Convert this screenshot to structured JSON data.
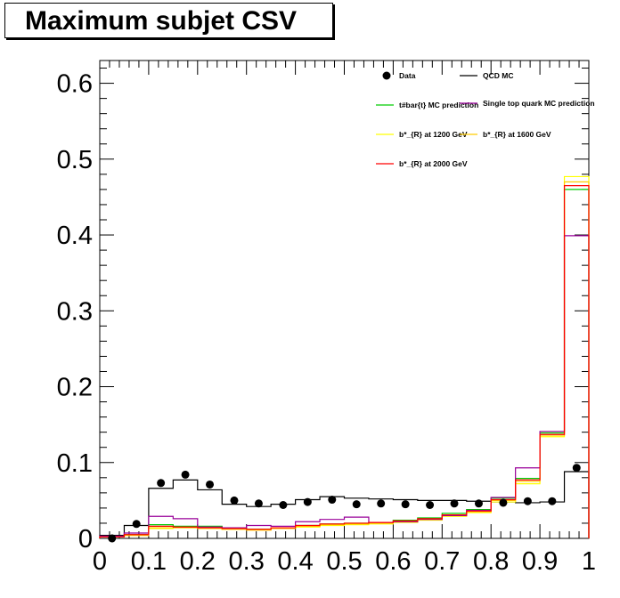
{
  "chart_data": {
    "type": "histogram",
    "title": "Maximum subjet CSV",
    "xlabel": "",
    "ylabel": "",
    "xlim": [
      0,
      1
    ],
    "ylim": [
      0,
      0.63
    ],
    "x_ticks": [
      "0",
      "0.1",
      "0.2",
      "0.3",
      "0.4",
      "0.5",
      "0.6",
      "0.7",
      "0.8",
      "0.9",
      "1"
    ],
    "y_ticks": [
      "0",
      "0.1",
      "0.2",
      "0.3",
      "0.4",
      "0.5",
      "0.6"
    ],
    "bin_edges": [
      0,
      0.05,
      0.1,
      0.15,
      0.2,
      0.25,
      0.3,
      0.35,
      0.4,
      0.45,
      0.5,
      0.55,
      0.6,
      0.65,
      0.7,
      0.75,
      0.8,
      0.85,
      0.9,
      0.95,
      1.0
    ],
    "legend_position": "top-right",
    "series": [
      {
        "name": "Data",
        "style": "points",
        "color": "#000000",
        "values": [
          0.0,
          0.019,
          0.073,
          0.084,
          0.071,
          0.05,
          0.046,
          0.044,
          0.048,
          0.051,
          0.045,
          0.046,
          0.045,
          0.044,
          0.046,
          0.046,
          0.047,
          0.049,
          0.049,
          0.093
        ]
      },
      {
        "name": "QCD MC",
        "style": "step",
        "color": "#000000",
        "values": [
          0.004,
          0.017,
          0.066,
          0.077,
          0.064,
          0.045,
          0.042,
          0.045,
          0.051,
          0.055,
          0.053,
          0.052,
          0.051,
          0.05,
          0.05,
          0.049,
          0.048,
          0.047,
          0.048,
          0.088
        ]
      },
      {
        "name": "t#bar{t} MC prediction",
        "style": "step",
        "color": "#00cc00",
        "values": [
          0.002,
          0.005,
          0.018,
          0.016,
          0.016,
          0.013,
          0.012,
          0.014,
          0.017,
          0.019,
          0.02,
          0.021,
          0.024,
          0.027,
          0.033,
          0.038,
          0.053,
          0.079,
          0.139,
          0.46
        ]
      },
      {
        "name": "Single top quark MC prediction",
        "style": "step",
        "color": "#990099",
        "values": [
          0.003,
          0.007,
          0.029,
          0.026,
          0.015,
          0.014,
          0.017,
          0.016,
          0.022,
          0.025,
          0.028,
          0.021,
          0.022,
          0.025,
          0.03,
          0.037,
          0.054,
          0.093,
          0.141,
          0.399
        ]
      },
      {
        "name": "b*_{R} at 1200 GeV",
        "style": "step",
        "color": "#ffff00",
        "values": [
          0.002,
          0.004,
          0.013,
          0.014,
          0.013,
          0.012,
          0.011,
          0.013,
          0.015,
          0.017,
          0.018,
          0.019,
          0.021,
          0.024,
          0.029,
          0.034,
          0.048,
          0.072,
          0.134,
          0.477
        ]
      },
      {
        "name": "b*_{R} at 1600 GeV",
        "style": "step",
        "color": "#ffcc00",
        "values": [
          0.002,
          0.004,
          0.014,
          0.014,
          0.013,
          0.012,
          0.011,
          0.013,
          0.016,
          0.018,
          0.019,
          0.02,
          0.022,
          0.025,
          0.03,
          0.035,
          0.05,
          0.075,
          0.136,
          0.47
        ]
      },
      {
        "name": "b*_{R} at 2000 GeV",
        "style": "step",
        "color": "#ff0000",
        "values": [
          0.002,
          0.005,
          0.016,
          0.015,
          0.014,
          0.013,
          0.012,
          0.014,
          0.017,
          0.019,
          0.02,
          0.021,
          0.023,
          0.026,
          0.031,
          0.036,
          0.051,
          0.077,
          0.137,
          0.465
        ]
      }
    ]
  }
}
